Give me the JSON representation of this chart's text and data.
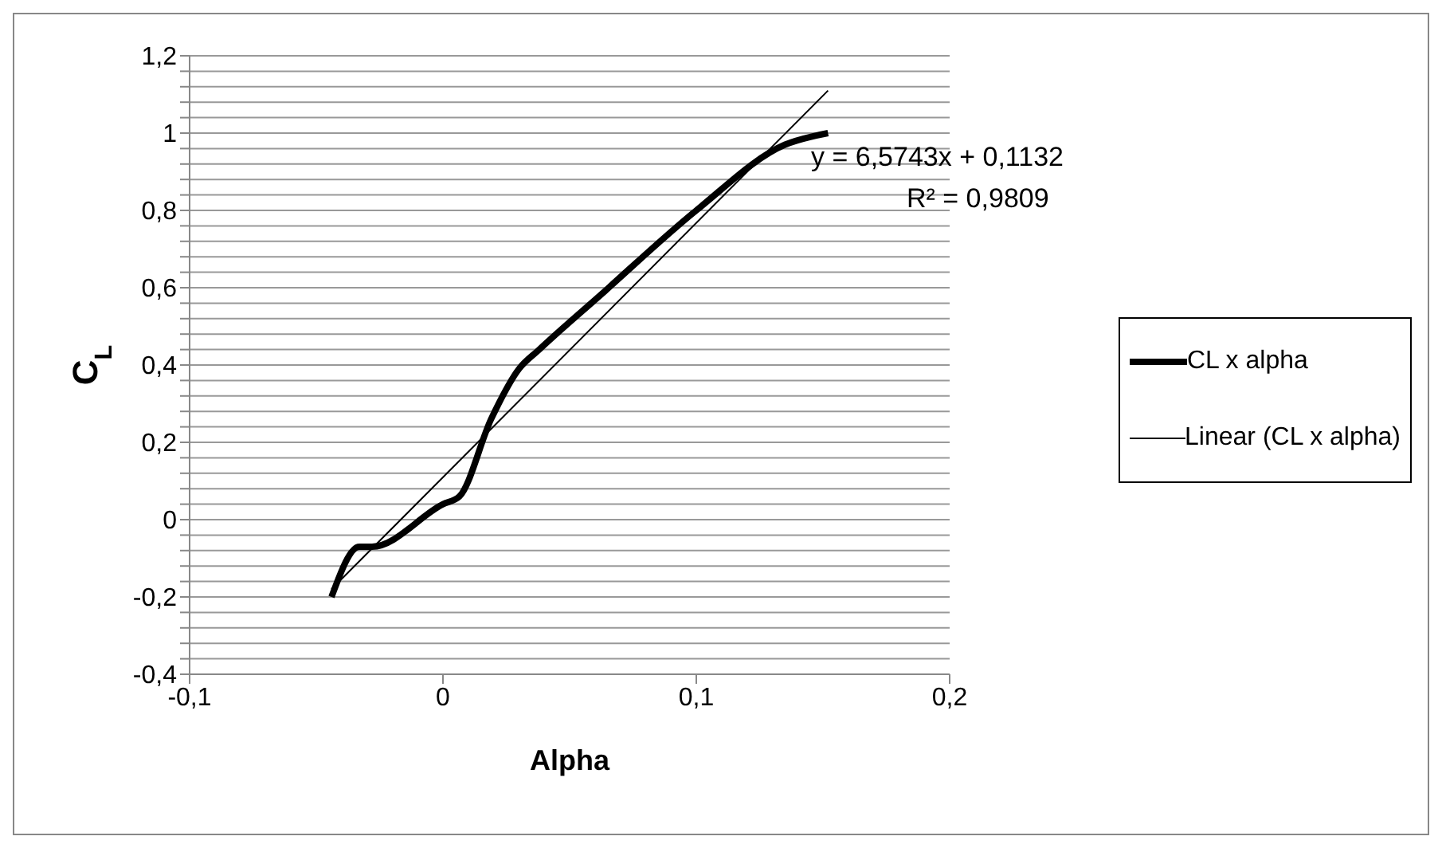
{
  "chart_data": {
    "type": "line",
    "xlabel": "Alpha",
    "ylabel": "C$_{L}$",
    "annotations": [
      "y = 6,5743x + 0,1132",
      "R² = 0,9809"
    ],
    "series": [
      {
        "name": "CL x alpha",
        "color": "#000000",
        "x": [
          -0.044,
          -0.033,
          -0.028,
          0,
          0.0065,
          0.019,
          0.03,
          0.038,
          0.062,
          0.1,
          0.135,
          0.152
        ],
        "values": [
          -0.2,
          -0.07,
          -0.07,
          0.04,
          0.06,
          0.26,
          0.39,
          0.44,
          0.58,
          0.8,
          0.97,
          1.0
        ]
      },
      {
        "name": "Linear (CL x alpha)",
        "color": "#000000",
        "x": [
          -0.044,
          0.152
        ],
        "values": [
          -0.18,
          1.11
        ]
      }
    ],
    "xlim": [
      -0.1,
      0.2
    ],
    "xticks": [
      {
        "value": -0.1,
        "label": "-0,1"
      },
      0,
      {
        "value": 0.1,
        "label": "0,1"
      },
      {
        "value": 0.2,
        "label": "0,2"
      }
    ],
    "ylim": [
      -0.4,
      1.2
    ],
    "yticks": [
      {
        "value": -0.4,
        "label": "-0,4"
      },
      {
        "value": -0.36,
        "label": null
      },
      {
        "value": -0.32,
        "label": null
      },
      {
        "value": -0.28,
        "label": null
      },
      {
        "value": -0.24,
        "label": null
      },
      {
        "value": -0.2,
        "label": "-0,2"
      },
      {
        "value": -0.16,
        "label": null
      },
      {
        "value": -0.12,
        "label": null
      },
      {
        "value": -0.08,
        "label": null
      },
      {
        "value": -0.04,
        "label": null
      },
      0,
      {
        "value": 0.04,
        "label": null
      },
      {
        "value": 0.08,
        "label": null
      },
      {
        "value": 0.12,
        "label": null
      },
      {
        "value": 0.16,
        "label": null
      },
      {
        "value": 0.2,
        "label": "0,2"
      },
      {
        "value": 0.24,
        "label": null
      },
      {
        "value": 0.28,
        "label": null
      },
      {
        "value": 0.32,
        "label": null
      },
      {
        "value": 0.36,
        "label": null
      },
      {
        "value": 0.4,
        "label": "0,4"
      },
      {
        "value": 0.44,
        "label": null
      },
      {
        "value": 0.48,
        "label": null
      },
      {
        "value": 0.52,
        "label": null
      },
      {
        "value": 0.56,
        "label": null
      },
      {
        "value": 0.6,
        "label": "0,6"
      },
      {
        "value": 0.64,
        "label": null
      },
      {
        "value": 0.68,
        "label": null
      },
      {
        "value": 0.72,
        "label": null
      },
      {
        "value": 0.76,
        "label": null
      },
      {
        "value": 0.8,
        "label": "0,8"
      },
      {
        "value": 0.84,
        "label": null
      },
      {
        "value": 0.88,
        "label": null
      },
      {
        "value": 0.92,
        "label": null
      },
      {
        "value": 0.96,
        "label": null
      },
      {
        "value": 1,
        "label": "1"
      },
      {
        "value": 1.04,
        "label": null
      },
      {
        "value": 1.08,
        "label": null
      },
      {
        "value": 1.12,
        "label": null
      },
      {
        "value": 1.16,
        "label": null
      },
      {
        "value": 1.2,
        "label": "1,2"
      }
    ],
    "grid": "y",
    "legend": "right",
    "marker": "none",
    "line_style": "solid"
  }
}
